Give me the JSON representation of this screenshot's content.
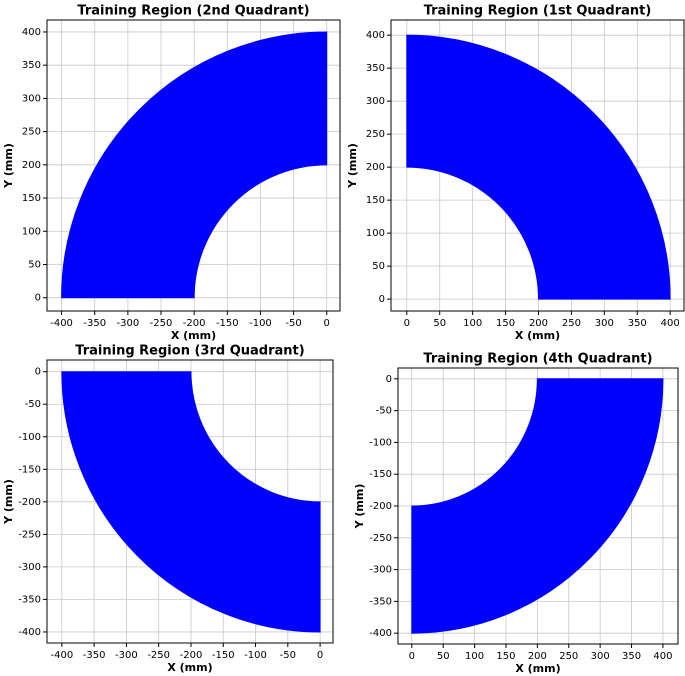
{
  "chart_data": [
    {
      "type": "annulus",
      "title": "Training Region (2nd Quadrant)",
      "x_label": "X (mm)",
      "y_label": "Y (mm)",
      "color": "#0000ff",
      "grid": true,
      "region": {
        "inner_radius": 200,
        "outer_radius": 400,
        "start_angle": 90,
        "end_angle": 180
      },
      "xlim": [
        -422,
        20
      ],
      "ylim": [
        -20,
        418
      ],
      "xticks": [
        -400,
        -350,
        -300,
        -250,
        -200,
        -150,
        -100,
        -50,
        0
      ],
      "yticks": [
        0,
        50,
        100,
        150,
        200,
        250,
        300,
        350,
        400
      ]
    },
    {
      "type": "annulus",
      "title": "Training Region (1st Quadrant)",
      "x_label": "X (mm)",
      "y_label": "Y (mm)",
      "color": "#0000ff",
      "grid": true,
      "region": {
        "inner_radius": 200,
        "outer_radius": 400,
        "start_angle": 0,
        "end_angle": 90
      },
      "xlim": [
        -24,
        421
      ],
      "ylim": [
        -18,
        423
      ],
      "xticks": [
        0,
        50,
        100,
        150,
        200,
        250,
        300,
        350,
        400
      ],
      "yticks": [
        0,
        50,
        100,
        150,
        200,
        250,
        300,
        350,
        400
      ]
    },
    {
      "type": "annulus",
      "title": "Training Region (3rd Quadrant)",
      "x_label": "X (mm)",
      "y_label": "Y (mm)",
      "color": "#0000ff",
      "grid": true,
      "region": {
        "inner_radius": 200,
        "outer_radius": 400,
        "start_angle": 180,
        "end_angle": 270
      },
      "xlim": [
        -423,
        20
      ],
      "ylim": [
        -417,
        18
      ],
      "xticks": [
        -400,
        -350,
        -300,
        -250,
        -200,
        -150,
        -100,
        -50,
        0
      ],
      "yticks": [
        -400,
        -350,
        -300,
        -250,
        -200,
        -150,
        -100,
        -50,
        0
      ]
    },
    {
      "type": "annulus",
      "title": "Training Region (4th Quadrant)",
      "x_label": "X (mm)",
      "y_label": "Y (mm)",
      "color": "#0000ff",
      "grid": true,
      "region": {
        "inner_radius": 200,
        "outer_radius": 400,
        "start_angle": 270,
        "end_angle": 360
      },
      "xlim": [
        -22,
        424
      ],
      "ylim": [
        -417,
        17
      ],
      "xticks": [
        0,
        50,
        100,
        150,
        200,
        250,
        300,
        350,
        400
      ],
      "yticks": [
        -400,
        -350,
        -300,
        -250,
        -200,
        -150,
        -100,
        -50,
        0
      ]
    }
  ]
}
